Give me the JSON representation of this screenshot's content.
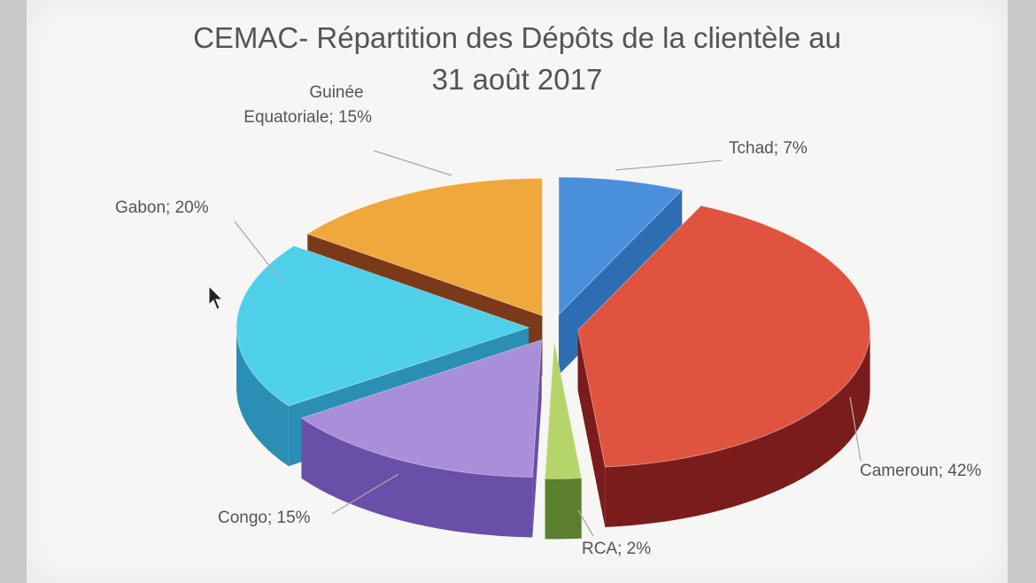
{
  "chart_data": {
    "type": "pie",
    "style": "3d-exploded",
    "title_lines": [
      "CEMAC- Répartition des Dépôts de la clientèle au",
      "31 août 2017"
    ],
    "slices": [
      {
        "name": "Tchad",
        "value": 7,
        "label": "Tchad; 7%",
        "color": "#4a8fdc",
        "side": "#2f6db3"
      },
      {
        "name": "Cameroun",
        "value": 42,
        "label": "Cameroun; 42%",
        "color": "#e0533f",
        "side": "#7a1c1c"
      },
      {
        "name": "RCA",
        "value": 2,
        "label": "RCA; 2%",
        "color": "#b5d56a",
        "side": "#5c7f2e"
      },
      {
        "name": "Congo",
        "value": 15,
        "label": "Congo; 15%",
        "color": "#a98ed9",
        "side": "#6a4fa8"
      },
      {
        "name": "Gabon",
        "value": 20,
        "label": "Gabon; 20%",
        "color": "#4fd0ea",
        "side": "#2b8fb5"
      },
      {
        "name": "Guinée Equatoriale",
        "value": 15,
        "label_lines": [
          "Guinée",
          "Equatoriale; 15%"
        ],
        "color": "#f0a83c",
        "side": "#7a3a1a"
      }
    ]
  }
}
